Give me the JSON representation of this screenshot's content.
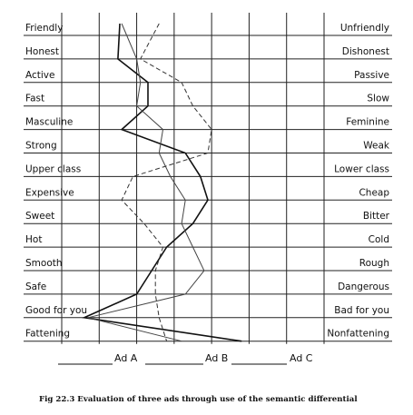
{
  "chart_data": {
    "type": "line",
    "title": "",
    "xlabel": "",
    "ylabel": "",
    "scale_points": 7,
    "left_labels": [
      "Friendly",
      "Honest",
      "Active",
      "Fast",
      "Masculine",
      "Strong",
      "Upper class",
      "Expensive",
      "Sweet",
      "Hot",
      "Smooth",
      "Safe",
      "Good for you",
      "Fattening"
    ],
    "right_labels": [
      "Unfriendly",
      "Dishonest",
      "Passive",
      "Slow",
      "Feminine",
      "Weak",
      "Lower class",
      "Cheap",
      "Bitter",
      "Cold",
      "Rough",
      "Dangerous",
      "Bad for you",
      "Nonfattening"
    ],
    "series": [
      {
        "name": "Ad A",
        "style": "solid-dark",
        "values": [
          2.05,
          2.0,
          2.8,
          2.8,
          2.1,
          3.8,
          4.2,
          4.4,
          4.0,
          3.3,
          2.9,
          2.5,
          1.1,
          5.3
        ]
      },
      {
        "name": "Ad B",
        "style": "solid-light",
        "values": [
          2.1,
          2.5,
          2.6,
          2.5,
          3.2,
          3.1,
          3.4,
          3.8,
          3.7,
          4.0,
          4.3,
          3.8,
          1.2,
          3.7
        ]
      },
      {
        "name": "Ad C",
        "style": "dashed",
        "values": [
          3.1,
          2.6,
          3.7,
          4.0,
          4.5,
          4.4,
          2.4,
          2.1,
          2.7,
          3.2,
          3.0,
          3.0,
          3.1,
          3.3
        ]
      }
    ]
  },
  "legend": {
    "ad_a": "Ad A",
    "ad_b": "Ad B",
    "ad_c": "Ad C"
  },
  "caption": "Fig 22.3 Evaluation of three ads through use of the semantic differential"
}
